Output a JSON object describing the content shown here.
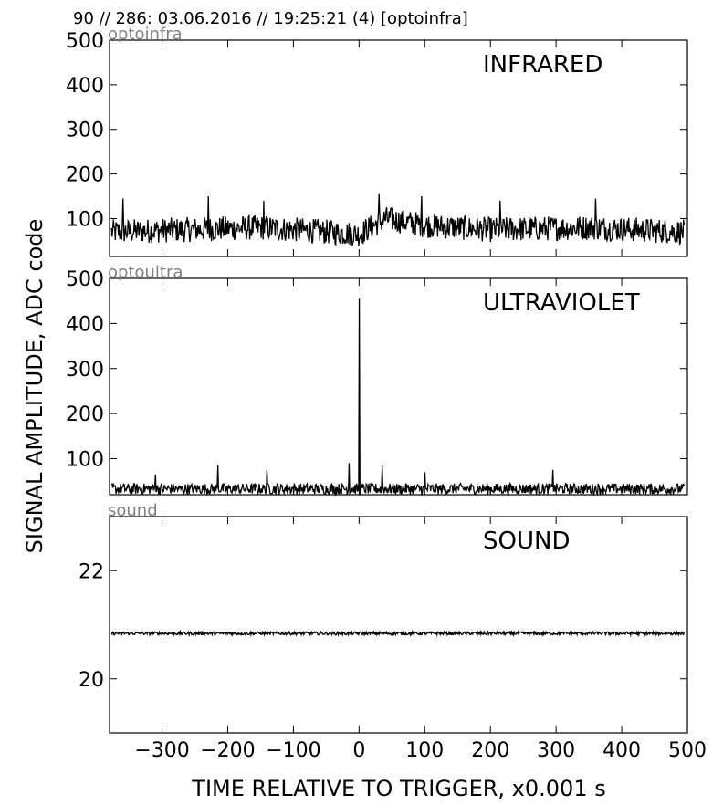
{
  "header": {
    "text": "90 // 286:   03.06.2016 // 19:25:21 (4)  [optoinfra]"
  },
  "chart_data": {
    "type": "line",
    "shared_x": {
      "label": "TIME RELATIVE TO TRIGGER,   x0.001 s",
      "range": [
        -380,
        500
      ],
      "ticks": [
        -300,
        -200,
        -100,
        0,
        100,
        200,
        300,
        400,
        500
      ],
      "tick_labels": [
        "−300",
        "−200",
        "−100",
        "0",
        "100",
        "200",
        "300",
        "400",
        "500"
      ]
    },
    "ylabel": "SIGNAL AMPLITUDE,  ADC code",
    "panels": [
      {
        "id": "infrared",
        "channel_label": "optoinfra",
        "title": "INFRARED",
        "ylim": [
          15,
          500
        ],
        "yticks": [
          100,
          200,
          300,
          400,
          500
        ],
        "ytick_labels": [
          "100",
          "200",
          "300",
          "400",
          "500"
        ],
        "series": {
          "kind": "noise",
          "x_range": [
            -377,
            495
          ],
          "n_points": 900,
          "baseline": 72,
          "noise_amp": 28,
          "envelope": [
            [
              -377,
              70
            ],
            [
              -150,
              80
            ],
            [
              -50,
              70
            ],
            [
              0,
              65
            ],
            [
              40,
              100
            ],
            [
              100,
              85
            ],
            [
              200,
              75
            ],
            [
              350,
              80
            ],
            [
              495,
              70
            ]
          ],
          "peaks": [
            [
              -360,
              145
            ],
            [
              -230,
              150
            ],
            [
              -145,
              140
            ],
            [
              30,
              155
            ],
            [
              95,
              150
            ],
            [
              215,
              140
            ],
            [
              360,
              145
            ]
          ]
        }
      },
      {
        "id": "ultraviolet",
        "channel_label": "optoultra",
        "title": "ULTRAVIOLET",
        "ylim": [
          20,
          500
        ],
        "yticks": [
          100,
          200,
          300,
          400,
          500
        ],
        "ytick_labels": [
          "100",
          "200",
          "300",
          "400",
          "500"
        ],
        "series": {
          "kind": "noise",
          "x_range": [
            -377,
            495
          ],
          "n_points": 900,
          "baseline": 33,
          "noise_amp": 12,
          "envelope": [],
          "peaks": [
            [
              -310,
              65
            ],
            [
              -215,
              85
            ],
            [
              -140,
              75
            ],
            [
              -15,
              90
            ],
            [
              0,
              455
            ],
            [
              35,
              85
            ],
            [
              100,
              70
            ],
            [
              295,
              75
            ]
          ]
        }
      },
      {
        "id": "sound",
        "channel_label": "sound",
        "title": "SOUND",
        "ylim": [
          19,
          23
        ],
        "yticks": [
          20,
          22
        ],
        "ytick_labels": [
          "20",
          "22"
        ],
        "series": {
          "kind": "noise",
          "x_range": [
            -377,
            495
          ],
          "n_points": 900,
          "baseline": 20.84,
          "noise_amp": 0.03,
          "envelope": [],
          "peaks": []
        }
      }
    ]
  }
}
